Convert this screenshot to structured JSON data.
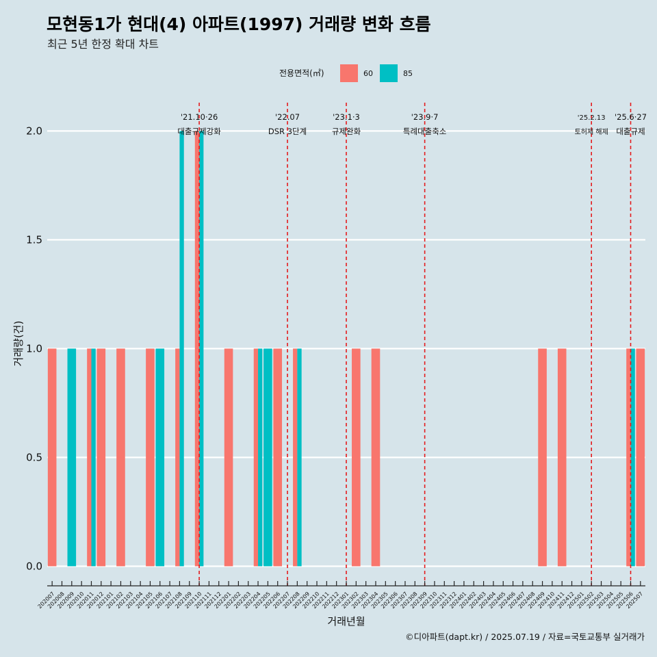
{
  "chart_data": {
    "type": "bar",
    "title": "모현동1가 현대(4) 아파트(1997) 거래량 변화 흐름",
    "subtitle": "최근 5년 한정 확대 차트",
    "xlabel": "거래년월",
    "ylabel": "거래량(건)",
    "ylim": [
      -0.09,
      2.13
    ],
    "yticks": [
      "0.0",
      "0.5",
      "1.0",
      "1.5",
      "2.0"
    ],
    "grid": "horizontal",
    "legend": {
      "title": "전용면적(㎡)",
      "position": "top"
    },
    "categories": [
      "202007",
      "202008",
      "202009",
      "202010",
      "202011",
      "202012",
      "202101",
      "202102",
      "202103",
      "202104",
      "202105",
      "202106",
      "202107",
      "202108",
      "202109",
      "202110",
      "202111",
      "202112",
      "202201",
      "202202",
      "202203",
      "202204",
      "202205",
      "202206",
      "202207",
      "202208",
      "202209",
      "202210",
      "202211",
      "202212",
      "202301",
      "202302",
      "202303",
      "202304",
      "202305",
      "202306",
      "202307",
      "202308",
      "202309",
      "202310",
      "202311",
      "202312",
      "202401",
      "202402",
      "202403",
      "202404",
      "202405",
      "202406",
      "202407",
      "202408",
      "202409",
      "202410",
      "202411",
      "202412",
      "202501",
      "202502",
      "202503",
      "202504",
      "202505",
      "202506",
      "202507"
    ],
    "series": [
      {
        "name": "60",
        "color": "#f8766d",
        "values": [
          1,
          0,
          0,
          0,
          1,
          1,
          0,
          1,
          0,
          0,
          1,
          0,
          0,
          1,
          0,
          2,
          0,
          0,
          1,
          0,
          0,
          1,
          0,
          1,
          0,
          1,
          0,
          0,
          0,
          0,
          0,
          1,
          0,
          1,
          0,
          0,
          0,
          0,
          0,
          0,
          0,
          0,
          0,
          0,
          0,
          0,
          0,
          0,
          0,
          0,
          1,
          0,
          1,
          0,
          0,
          0,
          0,
          0,
          0,
          1,
          1
        ]
      },
      {
        "name": "85",
        "color": "#00bfc4",
        "values": [
          0,
          0,
          1,
          0,
          1,
          0,
          0,
          0,
          0,
          0,
          0,
          1,
          0,
          2,
          0,
          2,
          0,
          0,
          0,
          0,
          0,
          1,
          1,
          0,
          0,
          1,
          0,
          0,
          0,
          0,
          0,
          0,
          0,
          0,
          0,
          0,
          0,
          0,
          0,
          0,
          0,
          0,
          0,
          0,
          0,
          0,
          0,
          0,
          0,
          0,
          0,
          0,
          0,
          0,
          0,
          0,
          0,
          0,
          0,
          1,
          0
        ]
      }
    ],
    "annotations": [
      {
        "category": "202110",
        "date": "'21.10·26",
        "text": "대출규제강화",
        "color": "#e41a1c"
      },
      {
        "category": "202207",
        "date": "'22.07",
        "text": "DSR 3단계",
        "color": "#e41a1c"
      },
      {
        "category": "202301",
        "date": "'23.1·3",
        "text": "규제완화",
        "color": "#e41a1c"
      },
      {
        "category": "202309",
        "date": "'23.9·7",
        "text": "특례대출축소",
        "color": "#e41a1c"
      },
      {
        "category": "202502",
        "date": "'25.2.13",
        "text": "토허제 해제",
        "color": "#e41a1c"
      },
      {
        "category": "202506",
        "date": "'25.6·27",
        "text": "대출규제",
        "color": "#e41a1c"
      }
    ]
  },
  "caption": "©디아파트(dapt.kr) / 2025.07.19 / 자료=국토교통부 실거래가"
}
